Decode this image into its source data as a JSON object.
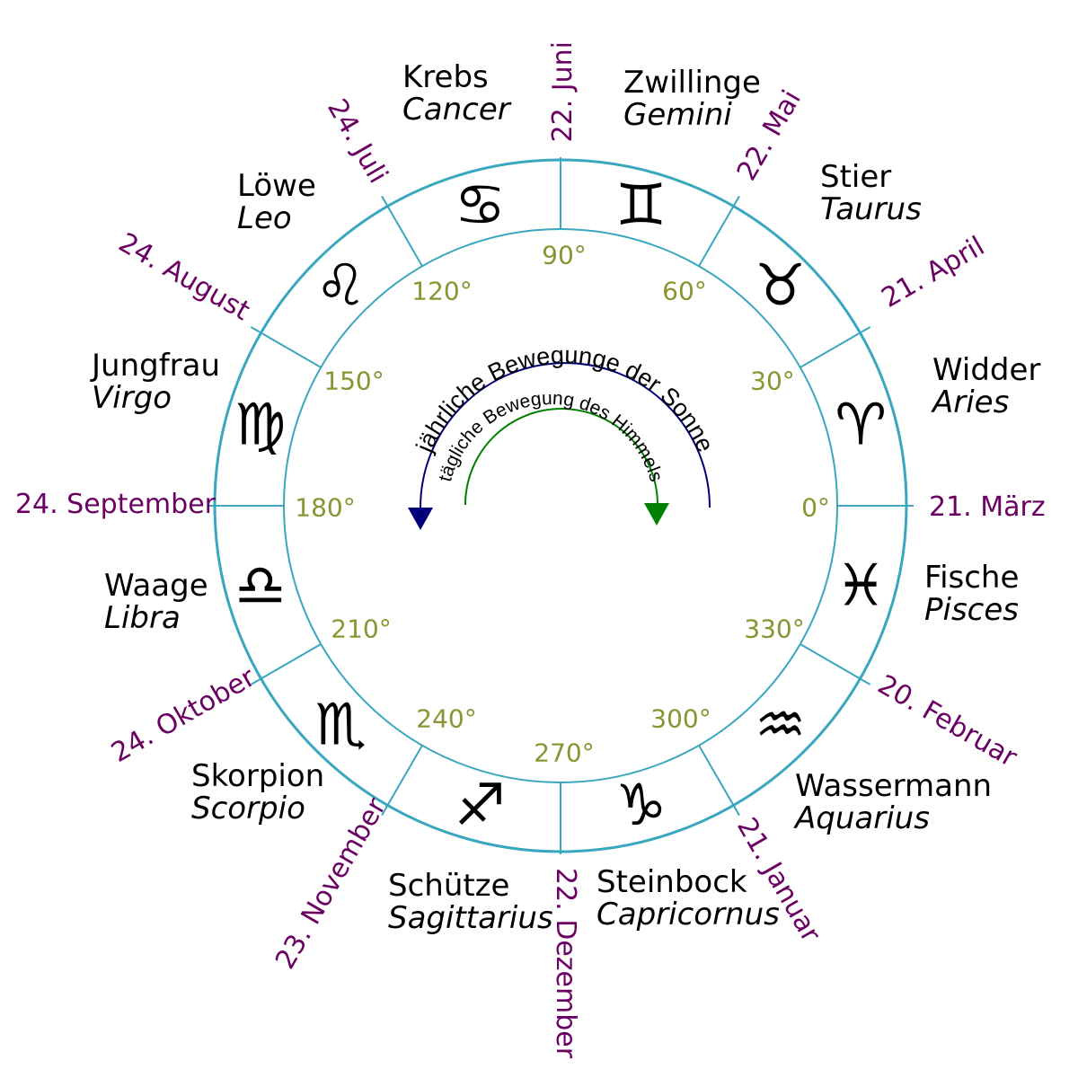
{
  "colors": {
    "ring": "#3aa6c0",
    "date": "#6b0063",
    "degree": "#8a9432",
    "sun_arc": "#00007a",
    "sky_arc": "#008000",
    "text": "#000000"
  },
  "signs": [
    {
      "german": "Widder",
      "latin": "Aries",
      "symbol": "♈",
      "icon": "aries-icon"
    },
    {
      "german": "Stier",
      "latin": "Taurus",
      "symbol": "♉",
      "icon": "taurus-icon"
    },
    {
      "german": "Zwillinge",
      "latin": "Gemini",
      "symbol": "♊",
      "icon": "gemini-icon"
    },
    {
      "german": "Krebs",
      "latin": "Cancer",
      "symbol": "♋",
      "icon": "cancer-icon"
    },
    {
      "german": "Löwe",
      "latin": "Leo",
      "symbol": "♌",
      "icon": "leo-icon"
    },
    {
      "german": "Jungfrau",
      "latin": "Virgo",
      "symbol": "♍",
      "icon": "virgo-icon"
    },
    {
      "german": "Waage",
      "latin": "Libra",
      "symbol": "♎",
      "icon": "libra-icon"
    },
    {
      "german": "Skorpion",
      "latin": "Scorpio",
      "symbol": "♏",
      "icon": "scorpio-icon"
    },
    {
      "german": "Schütze",
      "latin": "Sagittarius",
      "symbol": "♐",
      "icon": "sagittarius-icon"
    },
    {
      "german": "Steinbock",
      "latin": "Capricornus",
      "symbol": "♑",
      "icon": "capricorn-icon"
    },
    {
      "german": "Wassermann",
      "latin": "Aquarius",
      "symbol": "♒",
      "icon": "aquarius-icon"
    },
    {
      "german": "Fische",
      "latin": "Pisces",
      "symbol": "♓",
      "icon": "pisces-icon"
    }
  ],
  "dates": [
    "21. März",
    "21. April",
    "22. Mai",
    "22. Juni",
    "24. Juli",
    "24. August",
    "24. September",
    "24. Oktober",
    "23. November",
    "22. Dezember",
    "21. Januar",
    "20. Februar"
  ],
  "degrees": [
    "0°",
    "30°",
    "60°",
    "90°",
    "120°",
    "150°",
    "180°",
    "210°",
    "240°",
    "270°",
    "300°",
    "330°"
  ],
  "arcs": {
    "outer_label": "jährliche Bewegunge der Sonne",
    "inner_label": "tägliche Bewegung des Himmels"
  }
}
